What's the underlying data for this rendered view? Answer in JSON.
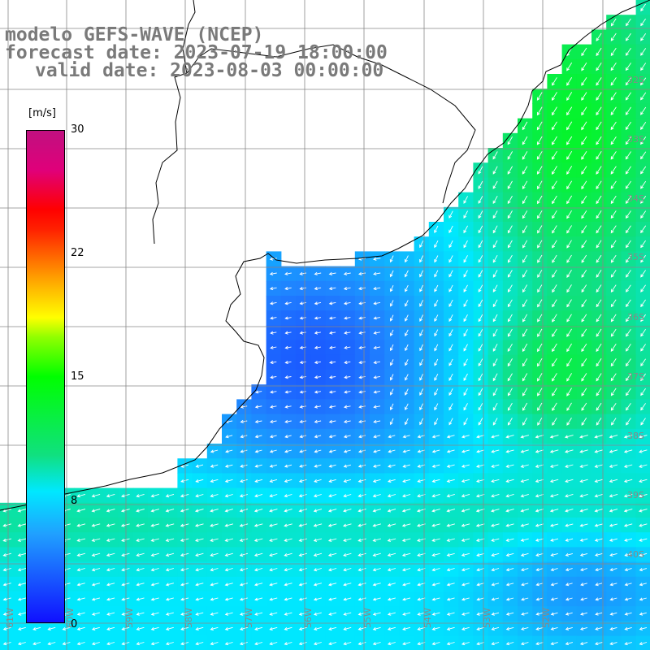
{
  "title": {
    "line1": "modelo GEFS-WAVE (NCEP)",
    "line2": "forecast date: 2023-07-19 18:00:00",
    "line3": "valid date: 2023-08-03 00:00:00"
  },
  "colorbar": {
    "unit": "[m/s]",
    "min": 0,
    "max": 30,
    "ticks": [
      "30",
      "22",
      "15",
      "8",
      "0"
    ],
    "tick_values": [
      30,
      22,
      15,
      8,
      0
    ],
    "stops": [
      "#1010ff",
      "#20a0ff",
      "#00e8ff",
      "#10e080",
      "#00ff00",
      "#90ff00",
      "#ffff00",
      "#ffa000",
      "#ff2000",
      "#e0007a",
      "#c01080"
    ]
  },
  "map": {
    "lat_labels": [
      "32S",
      "33S",
      "34S",
      "35S",
      "36S",
      "37S",
      "38S",
      "39S",
      "40S"
    ],
    "lon_labels": [
      "61W",
      "60W",
      "59W",
      "58W",
      "57W",
      "56W",
      "55W",
      "54W",
      "53W",
      "52W"
    ],
    "land_color": "#ffffff",
    "grid_color": "#888888",
    "arrow_color": "#ffffff"
  }
}
